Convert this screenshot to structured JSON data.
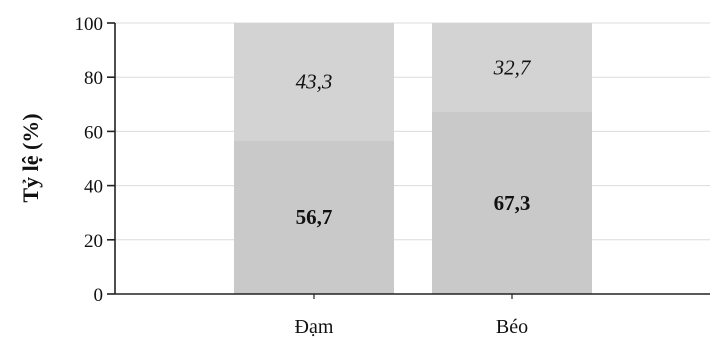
{
  "chart_data": {
    "type": "bar",
    "stacked": true,
    "categories": [
      "Đạm",
      "Béo"
    ],
    "series": [
      {
        "values": [
          56.7,
          67.3
        ],
        "labels": [
          "56,7",
          "67,3"
        ],
        "color": "#c9c9c9"
      },
      {
        "values": [
          43.3,
          32.7
        ],
        "labels": [
          "43,3",
          "32,7"
        ],
        "color": "#d3d3d3"
      }
    ],
    "ylabel": "Tỷ lệ (%)",
    "xlabel": "",
    "ylim": [
      0,
      100
    ],
    "yticks": [
      "0",
      "20",
      "40",
      "60",
      "80",
      "100"
    ],
    "grid": true,
    "legend": "none"
  },
  "colors": {
    "axis": "#222222",
    "grid": "#dcdcdc",
    "background": "#ffffff"
  }
}
